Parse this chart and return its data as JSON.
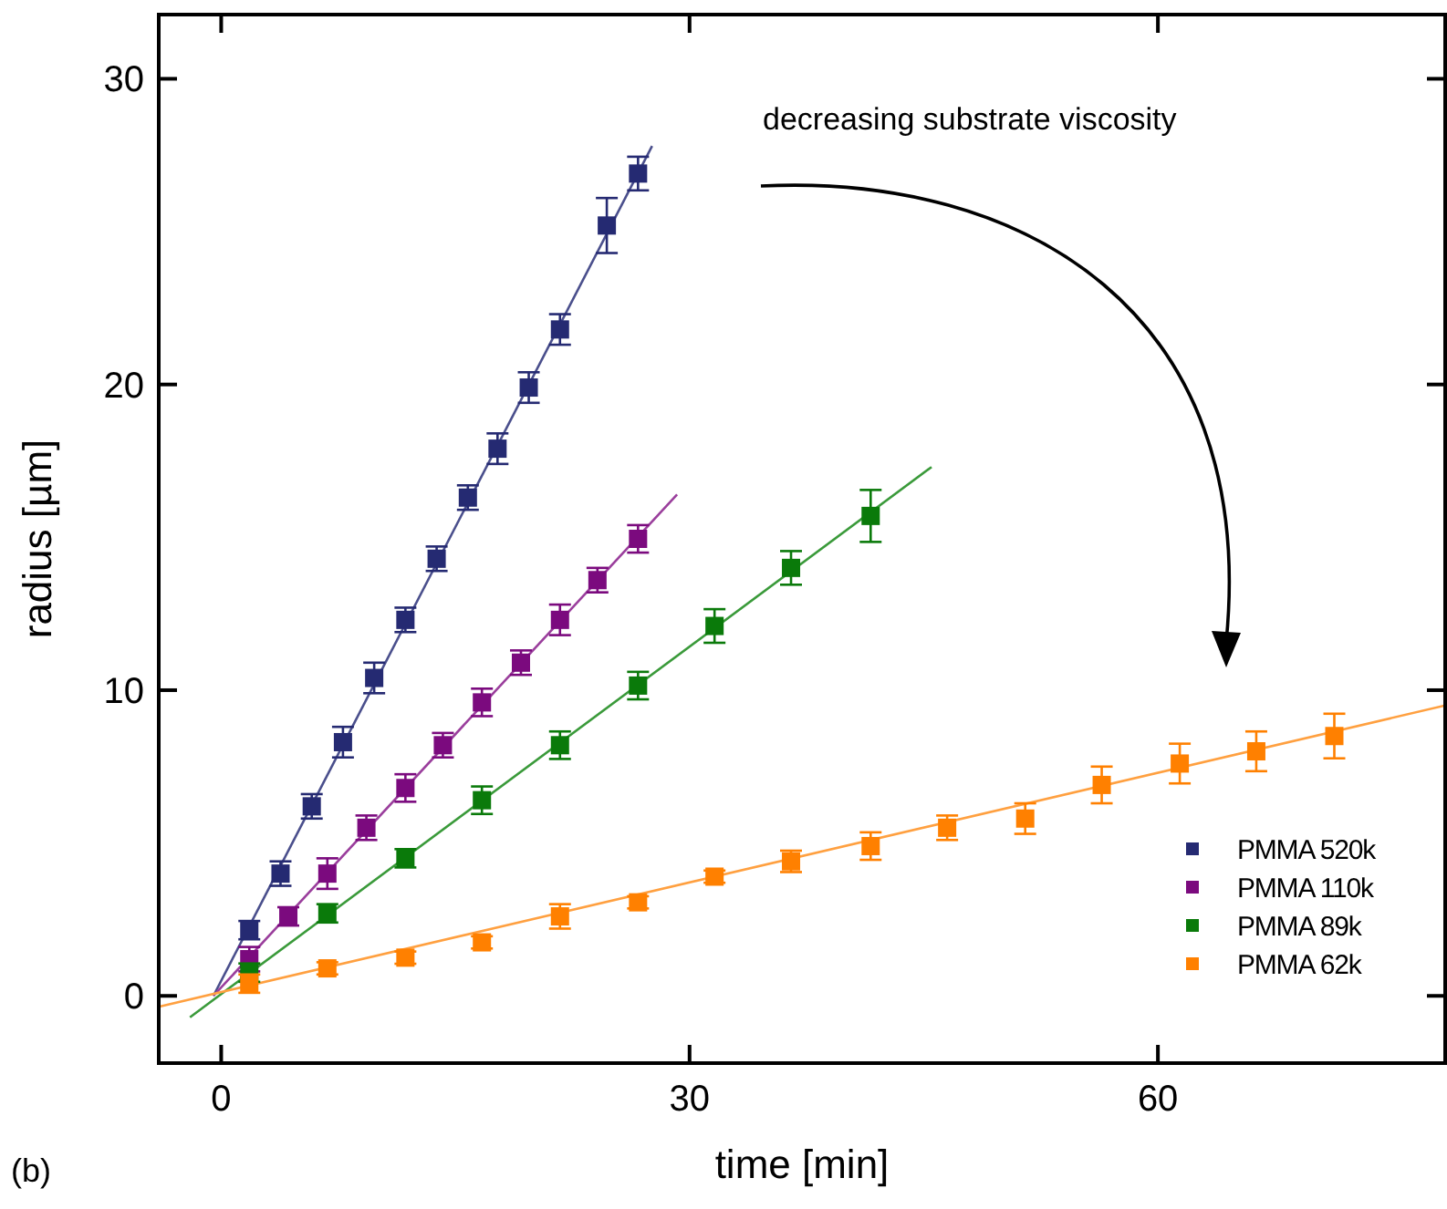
{
  "chart_data": {
    "type": "scatter",
    "xlabel": "time [min]",
    "ylabel": "radius [µm]",
    "xlim": [
      -4,
      78.4
    ],
    "ylim": [
      -2.2,
      32.1
    ],
    "xticks": [
      0,
      30,
      60
    ],
    "yticks": [
      0,
      10,
      20,
      30
    ],
    "marker": "square",
    "legend": "bottom right",
    "grid": false,
    "annotations": [
      "decreasing substrate viscosity",
      "(b)"
    ],
    "series": [
      {
        "name": "PMMA 520k",
        "color": "#252a72",
        "x": [
          1.8,
          3.8,
          5.8,
          7.8,
          9.8,
          11.8,
          13.8,
          15.8,
          17.7,
          19.7,
          21.7,
          24.7,
          26.7
        ],
        "values": [
          2.15,
          4.0,
          6.2,
          8.3,
          10.4,
          12.3,
          14.3,
          16.3,
          17.9,
          19.9,
          21.8,
          25.2,
          26.9
        ],
        "errors": [
          0.3,
          0.4,
          0.4,
          0.5,
          0.5,
          0.4,
          0.4,
          0.4,
          0.5,
          0.5,
          0.5,
          0.9,
          0.55
        ]
      },
      {
        "name": "PMMA 110k",
        "color": "#7b0a7e",
        "x": [
          1.8,
          4.3,
          6.8,
          9.3,
          11.8,
          14.2,
          16.7,
          19.2,
          21.7,
          24.1,
          26.7
        ],
        "values": [
          1.2,
          2.6,
          4.0,
          5.5,
          6.8,
          8.2,
          9.6,
          10.9,
          12.3,
          13.6,
          14.95
        ],
        "errors": [
          0.4,
          0.3,
          0.5,
          0.4,
          0.45,
          0.4,
          0.45,
          0.4,
          0.5,
          0.4,
          0.45
        ]
      },
      {
        "name": "PMMA 89k",
        "color": "#0a7a0a",
        "x": [
          1.8,
          6.8,
          11.8,
          16.7,
          21.7,
          26.7,
          31.6,
          36.5,
          41.6
        ],
        "values": [
          0.76,
          2.7,
          4.5,
          6.4,
          8.2,
          10.15,
          12.1,
          14.0,
          15.7
        ],
        "errors": [
          0.3,
          0.3,
          0.3,
          0.45,
          0.45,
          0.45,
          0.55,
          0.55,
          0.85
        ]
      },
      {
        "name": "PMMA 62k",
        "color": "#ff8000",
        "x": [
          1.8,
          6.8,
          11.8,
          16.7,
          21.7,
          26.7,
          31.6,
          36.5,
          41.6,
          46.5,
          51.5,
          56.4,
          61.4,
          66.3,
          71.3
        ],
        "values": [
          0.4,
          0.9,
          1.25,
          1.75,
          2.6,
          3.06,
          3.9,
          4.4,
          4.9,
          5.5,
          5.8,
          6.9,
          7.6,
          8.0,
          8.5
        ],
        "errors": [
          0.3,
          0.2,
          0.2,
          0.2,
          0.4,
          0.2,
          0.2,
          0.35,
          0.45,
          0.4,
          0.5,
          0.6,
          0.65,
          0.65,
          0.73
        ]
      },
      {
        "type": "line",
        "marker": "none",
        "color": "#4a4f8c",
        "x": [
          -0.5,
          27.6
        ],
        "values": [
          0,
          27.8
        ]
      },
      {
        "type": "line",
        "marker": "none",
        "color": "#9a3e9c",
        "x": [
          -0.5,
          29.2
        ],
        "values": [
          0,
          16.4
        ]
      },
      {
        "type": "line",
        "marker": "none",
        "color": "#3a9a3a",
        "x": [
          -2.0,
          45.5
        ],
        "values": [
          -0.7,
          17.3
        ]
      },
      {
        "type": "line",
        "marker": "none",
        "color": "#ffa040",
        "x": [
          -3.95,
          78.4
        ],
        "values": [
          -0.35,
          9.5
        ]
      }
    ]
  }
}
